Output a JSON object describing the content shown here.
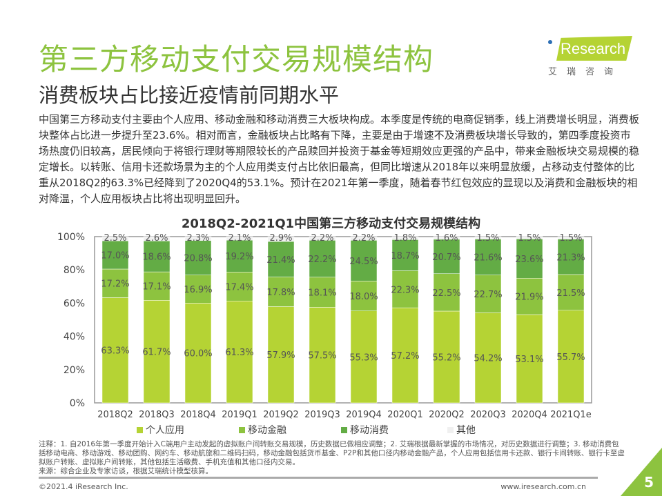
{
  "title": "第三方移动支付交易规模结构",
  "subtitle": "消费板块占比接近疫情前同期水平",
  "paragraph": "中国第三方移动支付主要由个人应用、移动金融和移动消费三大板块构成。本季度是传统的电商促销季，线上消费增长明显，消费板块整体占比进一步提升至23.6%。相对而言，金融板块占比略有下降，主要是由于增速不及消费板块增长导致的，第四季度投资市场热度仍旧较高，居民倾向于将银行理财等期限较长的产品赎回并投资于基金等短期效应更强的产品中，带来金融板块交易规模的稳定增长。以转账、信用卡还款场景为主的个人应用类支付占比依旧最高，但同比增速从2018年以来明显放缓，占移动支付整体的比重从2018Q2的63.3%已经降到了2020Q4的53.1%。预计在2021年第一季度，随着春节红包效应的显现以及消费和金融板块的相对降温，个人应用板块占比将出现明显回升。",
  "logo": {
    "text": "iResearch",
    "cn": "艾瑞咨询"
  },
  "chart_data": {
    "type": "bar",
    "stacked": true,
    "title": "2018Q2-2021Q1中国第三方移动支付交易规模结构",
    "categories": [
      "2018Q2",
      "2018Q3",
      "2018Q4",
      "2019Q1",
      "2019Q2",
      "2019Q3",
      "2019Q4",
      "2020Q1",
      "2020Q2",
      "2020Q3",
      "2020Q4",
      "2021Q1e"
    ],
    "ylim": [
      0,
      100
    ],
    "yticks": [
      "0%",
      "20%",
      "40%",
      "60%",
      "80%",
      "100%"
    ],
    "legend_position": "bottom",
    "series": [
      {
        "name": "个人应用",
        "color": "#b5d334",
        "values": [
          63.3,
          61.7,
          60.0,
          61.3,
          57.9,
          57.5,
          55.3,
          57.2,
          55.2,
          54.2,
          53.1,
          55.7
        ]
      },
      {
        "name": "移动金融",
        "color": "#8dc33f",
        "values": [
          17.2,
          17.1,
          16.9,
          17.4,
          17.8,
          18.1,
          18.0,
          22.3,
          22.5,
          22.7,
          21.9,
          21.5
        ]
      },
      {
        "name": "移动消费",
        "color": "#63ac45",
        "values": [
          17.0,
          18.6,
          20.8,
          19.2,
          21.4,
          22.2,
          24.5,
          18.7,
          20.7,
          21.6,
          23.6,
          21.3
        ]
      },
      {
        "name": "其他",
        "color": "#f0f0f0",
        "values": [
          2.5,
          2.6,
          2.3,
          2.1,
          2.9,
          2.2,
          2.2,
          1.8,
          1.6,
          1.5,
          1.5,
          1.5
        ]
      }
    ]
  },
  "notes": "注释：1. 自2016年第一季度开始计入C端用户主动发起的虚拟账户间转账交易规模，历史数据已做相应调整；2. 艾瑞根据最新掌握的市场情况，对历史数据进行调整；3. 移动消费包括移动电商、移动游戏、移动团购、网约车、移动航旅和二维码扫码，移动金融包括货币基金、P2P和其他口径内移动金融产品，个人应用包括信用卡还款、银行卡间转账、银行卡至虚拟账户转账、虚拟账户间转账，其他包括生活缴费、手机充值和其他口径内交易。",
  "source": "来源：综合企业及专家访谈，根据艾瑞统计模型核算。",
  "footer": {
    "copyright": "©2021.4 iResearch Inc.",
    "url": "www.iresearch.com.cn",
    "page": "5"
  }
}
